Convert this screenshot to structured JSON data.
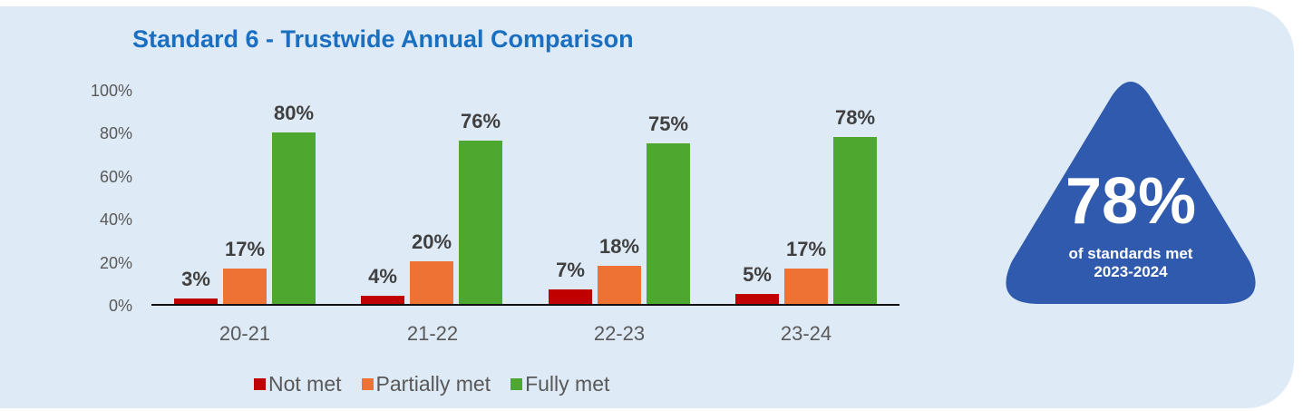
{
  "chart_data": {
    "type": "bar",
    "title": "Standard 6 - Trustwide Annual Comparison",
    "xlabel": "",
    "ylabel": "",
    "ylim": [
      0,
      100
    ],
    "yticks": [
      "0%",
      "20%",
      "40%",
      "60%",
      "80%",
      "100%"
    ],
    "grid": false,
    "legend_position": "bottom",
    "categories": [
      "20-21",
      "21-22",
      "22-23",
      "23-24"
    ],
    "series": [
      {
        "name": "Not met",
        "color": "#c00000",
        "values": [
          3,
          4,
          7,
          5
        ],
        "labels": [
          "3%",
          "4%",
          "7%",
          "5%"
        ]
      },
      {
        "name": "Partially met",
        "color": "#ed7233",
        "values": [
          17,
          20,
          18,
          17
        ],
        "labels": [
          "17%",
          "20%",
          "18%",
          "17%"
        ]
      },
      {
        "name": "Fully met",
        "color": "#4ea72e",
        "values": [
          80,
          76,
          75,
          78
        ],
        "labels": [
          "80%",
          "76%",
          "75%",
          "78%"
        ]
      }
    ]
  },
  "badge": {
    "value": "78%",
    "line1": "of standards met",
    "line2": "2023-2024",
    "color": "#2f5aae"
  },
  "colors": {
    "panel_bg": "#deeaf6",
    "title": "#1a6fc0"
  }
}
